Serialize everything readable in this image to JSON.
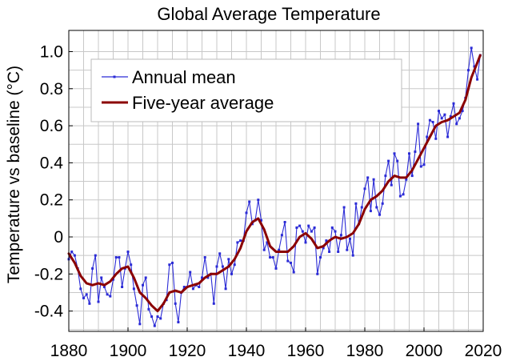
{
  "chart_data": {
    "type": "line",
    "title": "Global Average Temperature",
    "xlabel": "",
    "ylabel": "Temperature vs baseline (°C)",
    "xlim": [
      1880,
      2020
    ],
    "ylim": [
      -0.52,
      1.1
    ],
    "x_ticks": [
      1880,
      1900,
      1920,
      1940,
      1960,
      1980,
      2000,
      2020
    ],
    "x_tick_labels": [
      "1880",
      "1900",
      "1920",
      "1940",
      "1960",
      "1980",
      "2000",
      "2020"
    ],
    "y_ticks": [
      -0.4,
      -0.2,
      0,
      0.2,
      0.4,
      0.6,
      0.8,
      1.0
    ],
    "y_tick_labels": [
      "-0.4",
      "-0.2",
      "0",
      "0.2",
      "0.4",
      "0.6",
      "0.8",
      "1.0"
    ],
    "grid": true,
    "legend_position": "top-left",
    "colors": {
      "annual": "#2b2bd6",
      "five_year": "#8b0000",
      "grid": "#c8c8c8",
      "axis": "#000000"
    },
    "series": [
      {
        "name": "Annual mean",
        "style": "line-with-markers",
        "x": [
          1880,
          1881,
          1882,
          1883,
          1884,
          1885,
          1886,
          1887,
          1888,
          1889,
          1890,
          1891,
          1892,
          1893,
          1894,
          1895,
          1896,
          1897,
          1898,
          1899,
          1900,
          1901,
          1902,
          1903,
          1904,
          1905,
          1906,
          1907,
          1908,
          1909,
          1910,
          1911,
          1912,
          1913,
          1914,
          1915,
          1916,
          1917,
          1918,
          1919,
          1920,
          1921,
          1922,
          1923,
          1924,
          1925,
          1926,
          1927,
          1928,
          1929,
          1930,
          1931,
          1932,
          1933,
          1934,
          1935,
          1936,
          1937,
          1938,
          1939,
          1940,
          1941,
          1942,
          1943,
          1944,
          1945,
          1946,
          1947,
          1948,
          1949,
          1950,
          1951,
          1952,
          1953,
          1954,
          1955,
          1956,
          1957,
          1958,
          1959,
          1960,
          1961,
          1962,
          1963,
          1964,
          1965,
          1966,
          1967,
          1968,
          1969,
          1970,
          1971,
          1972,
          1973,
          1974,
          1975,
          1976,
          1977,
          1978,
          1979,
          1980,
          1981,
          1982,
          1983,
          1984,
          1985,
          1986,
          1987,
          1988,
          1989,
          1990,
          1991,
          1992,
          1993,
          1994,
          1995,
          1996,
          1997,
          1998,
          1999,
          2000,
          2001,
          2002,
          2003,
          2004,
          2005,
          2006,
          2007,
          2008,
          2009,
          2010,
          2011,
          2012,
          2013,
          2014,
          2015,
          2016,
          2017,
          2018,
          2019
        ],
        "values": [
          -0.12,
          -0.08,
          -0.1,
          -0.17,
          -0.28,
          -0.33,
          -0.31,
          -0.36,
          -0.17,
          -0.1,
          -0.35,
          -0.22,
          -0.27,
          -0.31,
          -0.32,
          -0.23,
          -0.11,
          -0.11,
          -0.27,
          -0.17,
          -0.08,
          -0.15,
          -0.28,
          -0.37,
          -0.47,
          -0.26,
          -0.22,
          -0.39,
          -0.43,
          -0.48,
          -0.43,
          -0.44,
          -0.36,
          -0.34,
          -0.15,
          -0.14,
          -0.36,
          -0.46,
          -0.3,
          -0.27,
          -0.27,
          -0.19,
          -0.28,
          -0.26,
          -0.27,
          -0.22,
          -0.11,
          -0.22,
          -0.2,
          -0.36,
          -0.16,
          -0.09,
          -0.16,
          -0.28,
          -0.12,
          -0.2,
          -0.15,
          -0.03,
          -0.02,
          -0.02,
          0.13,
          0.19,
          0.07,
          0.09,
          0.2,
          0.09,
          -0.07,
          -0.03,
          -0.11,
          -0.11,
          -0.17,
          -0.07,
          0.01,
          0.08,
          -0.13,
          -0.14,
          -0.19,
          0.05,
          0.06,
          0.03,
          -0.03,
          0.06,
          0.03,
          0.05,
          -0.2,
          -0.11,
          -0.06,
          -0.02,
          -0.08,
          0.05,
          0.03,
          -0.08,
          0.01,
          0.16,
          -0.07,
          -0.01,
          -0.1,
          0.18,
          0.07,
          0.16,
          0.26,
          0.32,
          0.14,
          0.31,
          0.16,
          0.12,
          0.18,
          0.33,
          0.41,
          0.28,
          0.45,
          0.41,
          0.22,
          0.23,
          0.31,
          0.45,
          0.33,
          0.46,
          0.61,
          0.38,
          0.39,
          0.54,
          0.63,
          0.62,
          0.53,
          0.68,
          0.64,
          0.66,
          0.54,
          0.65,
          0.72,
          0.61,
          0.64,
          0.68,
          0.75,
          0.9,
          1.02,
          0.92,
          0.85,
          0.98
        ]
      },
      {
        "name": "Five-year average",
        "style": "smooth-line",
        "x": [
          1880,
          1882,
          1884,
          1886,
          1888,
          1890,
          1892,
          1894,
          1896,
          1898,
          1900,
          1902,
          1904,
          1906,
          1908,
          1910,
          1912,
          1914,
          1916,
          1918,
          1920,
          1922,
          1924,
          1926,
          1928,
          1930,
          1932,
          1934,
          1936,
          1938,
          1940,
          1942,
          1944,
          1946,
          1948,
          1950,
          1952,
          1954,
          1956,
          1958,
          1960,
          1962,
          1964,
          1966,
          1968,
          1970,
          1972,
          1974,
          1976,
          1978,
          1980,
          1982,
          1984,
          1986,
          1988,
          1990,
          1992,
          1994,
          1996,
          1998,
          2000,
          2002,
          2004,
          2006,
          2008,
          2010,
          2012,
          2014,
          2016,
          2018,
          2019
        ],
        "values": [
          -0.09,
          -0.14,
          -0.21,
          -0.25,
          -0.26,
          -0.25,
          -0.26,
          -0.24,
          -0.2,
          -0.17,
          -0.16,
          -0.22,
          -0.3,
          -0.33,
          -0.37,
          -0.4,
          -0.36,
          -0.3,
          -0.29,
          -0.3,
          -0.27,
          -0.26,
          -0.25,
          -0.22,
          -0.2,
          -0.2,
          -0.18,
          -0.16,
          -0.12,
          -0.06,
          0.03,
          0.08,
          0.1,
          0.04,
          -0.05,
          -0.08,
          -0.08,
          -0.08,
          -0.05,
          0.0,
          0.02,
          -0.01,
          -0.06,
          -0.05,
          -0.02,
          0.0,
          -0.01,
          0.0,
          0.02,
          0.07,
          0.15,
          0.2,
          0.22,
          0.25,
          0.3,
          0.33,
          0.32,
          0.32,
          0.36,
          0.42,
          0.48,
          0.54,
          0.6,
          0.62,
          0.63,
          0.65,
          0.67,
          0.74,
          0.86,
          0.94,
          0.98
        ]
      }
    ]
  }
}
